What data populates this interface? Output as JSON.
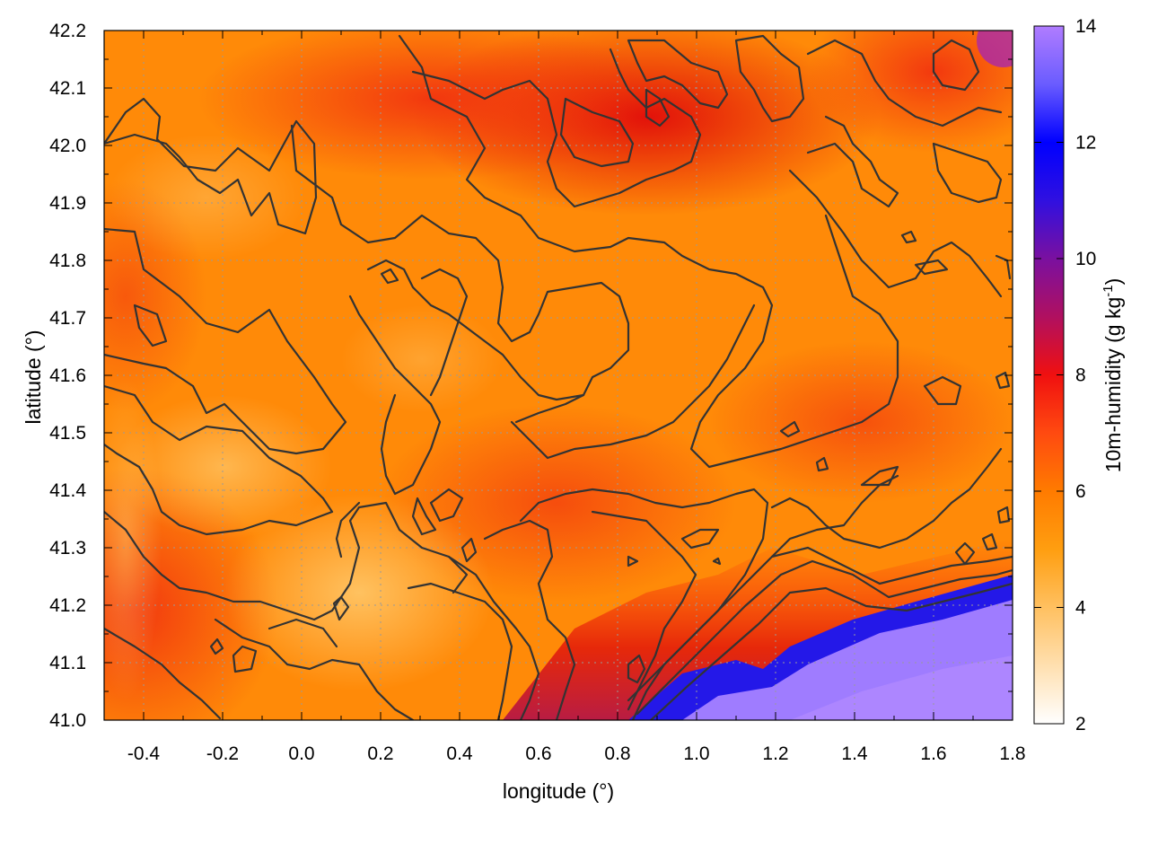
{
  "chart_data": {
    "type": "heatmap",
    "title": "",
    "xlabel": "longitude (°)",
    "ylabel": "latitude (°)",
    "xlim": [
      -0.5,
      1.8
    ],
    "ylim": [
      41.0,
      42.2
    ],
    "xticks": [
      "-0.4",
      "-0.2",
      "0.0",
      "0.2",
      "0.4",
      "0.6",
      "0.8",
      "1.0",
      "1.2",
      "1.4",
      "1.6",
      "1.8"
    ],
    "yticks": [
      "41.0",
      "41.1",
      "41.2",
      "41.3",
      "41.4",
      "41.5",
      "41.6",
      "41.7",
      "41.8",
      "41.9",
      "42.0",
      "42.1",
      "42.2"
    ],
    "grid": true,
    "colorbar": {
      "label": "10m-humidity (g kg",
      "label_sup": "-1",
      "label_end": ")",
      "range": [
        2,
        14
      ],
      "ticks": [
        "2",
        "4",
        "6",
        "8",
        "10",
        "12",
        "14"
      ],
      "stops": [
        {
          "value": 2,
          "color": "#ffffff"
        },
        {
          "value": 4,
          "color": "#ffc060"
        },
        {
          "value": 5,
          "color": "#ff9e10"
        },
        {
          "value": 6,
          "color": "#ff7b00"
        },
        {
          "value": 7,
          "color": "#ff4a10"
        },
        {
          "value": 8,
          "color": "#f01010"
        },
        {
          "value": 9,
          "color": "#b01060"
        },
        {
          "value": 10,
          "color": "#7a10a0"
        },
        {
          "value": 11,
          "color": "#3010e0"
        },
        {
          "value": 12,
          "color": "#0000ff"
        },
        {
          "value": 13,
          "color": "#6a5cff"
        },
        {
          "value": 14,
          "color": "#b07cff"
        }
      ]
    },
    "regions": {
      "sea_value": 13.2,
      "coast_value": 12,
      "land_typical_value": 5.5,
      "north_maximum_value": 8.5
    }
  }
}
